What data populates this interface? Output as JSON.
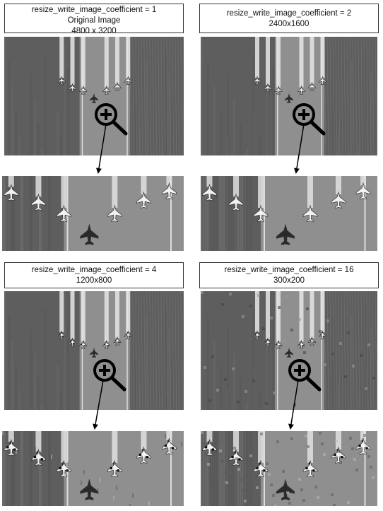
{
  "panels": [
    {
      "id": "coef-1",
      "lines": [
        "resize_write_image_coefficient = 1",
        "Original Image",
        "4800 x 3200"
      ],
      "degradation": "none"
    },
    {
      "id": "coef-2",
      "lines": [
        "resize_write_image_coefficient = 2",
        "2400x1600"
      ],
      "degradation": "slight"
    },
    {
      "id": "coef-4",
      "lines": [
        "resize_write_image_coefficient = 4",
        "1200x800"
      ],
      "degradation": "moderate"
    },
    {
      "id": "coef-16",
      "lines": [
        "resize_write_image_coefficient = 16",
        "300x200"
      ],
      "degradation": "heavy"
    }
  ],
  "icons": {
    "zoom": "magnifier-plus-icon",
    "arrow": "arrow-down-icon",
    "aircraft": "jet-icon"
  },
  "colors": {
    "field": "#5e5e5e",
    "runway": "#8f8f8f",
    "smoke": "#e6e6e6",
    "jet": "#f2f2f2",
    "lead_jet": "#2a2a2a"
  }
}
